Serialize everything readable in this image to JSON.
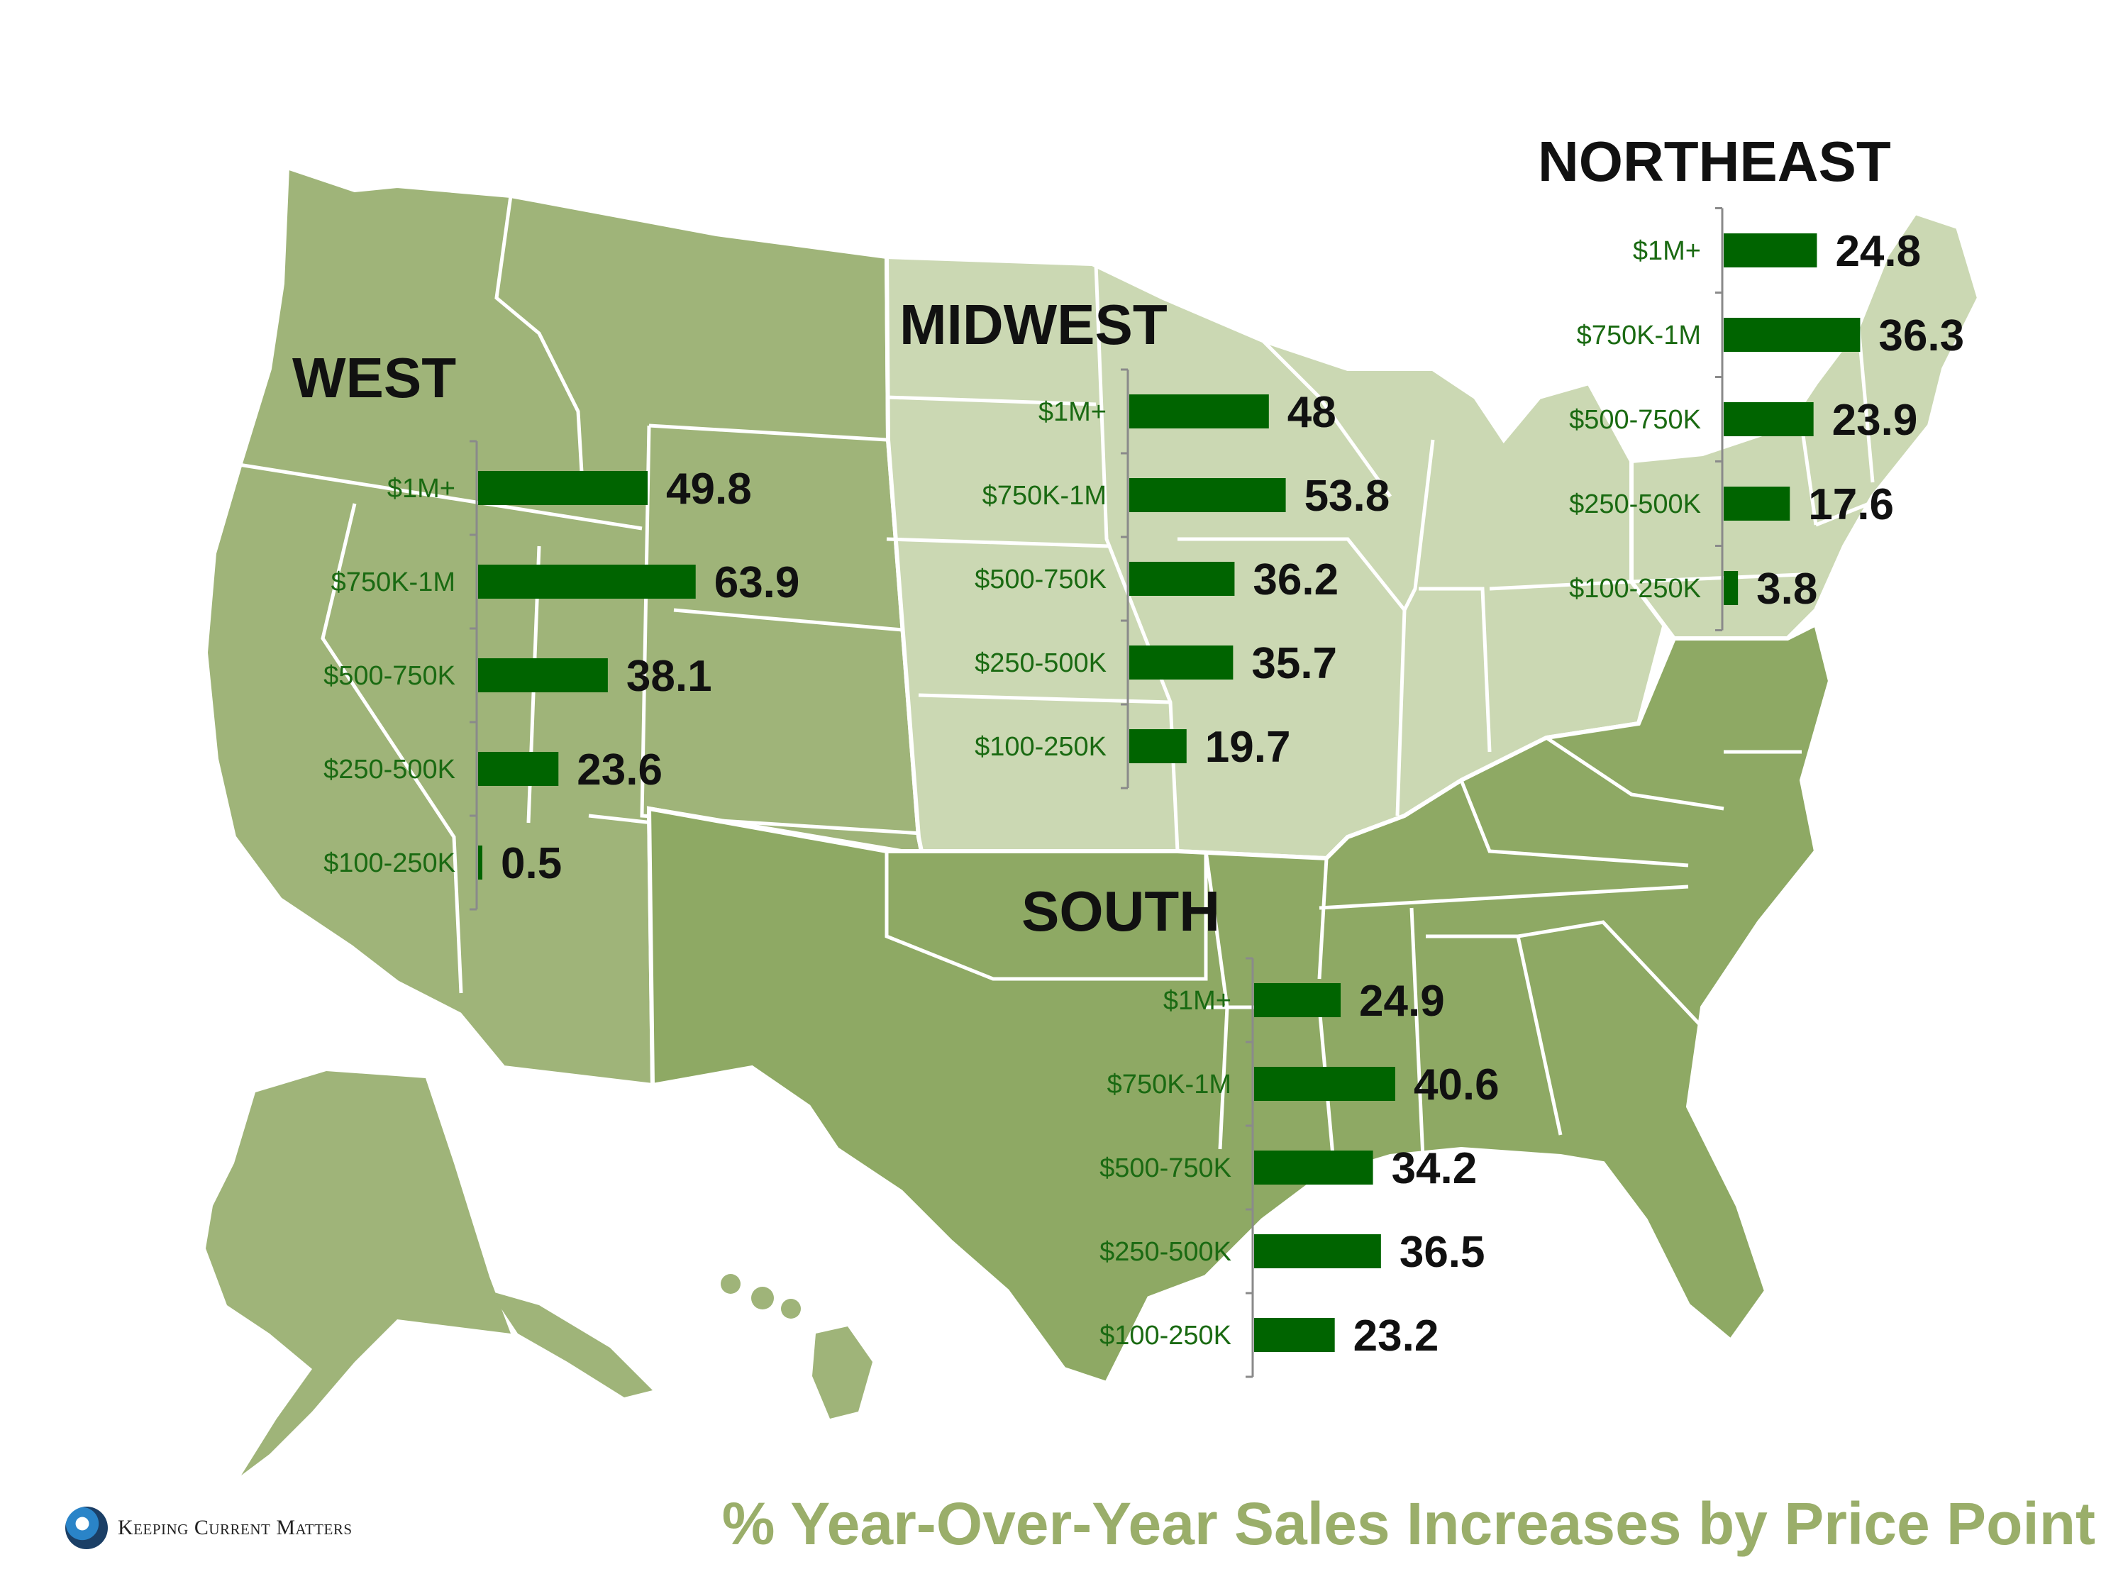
{
  "title": "% Year-Over-Year Sales Increases by Price Point",
  "brand": {
    "name": "Keeping Current Matters",
    "logo_icon": "kcm-swirl-icon"
  },
  "colors": {
    "bar": "#006400",
    "category_text": "#1a6a12",
    "map_dark": "#8ea964",
    "map_mid": "#9fb479",
    "map_light": "#cbd8b3",
    "footer_title": "#9aae6a"
  },
  "chart_data": [
    {
      "type": "bar",
      "region": "WEST",
      "title": "WEST",
      "categories": [
        "$1M+",
        "$750K-1M",
        "$500-750K",
        "$250-500K",
        "$100-250K"
      ],
      "values": [
        49.8,
        63.9,
        38.1,
        23.6,
        0.5
      ],
      "value_labels": [
        "49.8",
        "63.9",
        "38.1",
        "23.6",
        "0.5"
      ],
      "orientation": "horizontal"
    },
    {
      "type": "bar",
      "region": "MIDWEST",
      "title": "MIDWEST",
      "categories": [
        "$1M+",
        "$750K-1M",
        "$500-750K",
        "$250-500K",
        "$100-250K"
      ],
      "values": [
        48,
        53.8,
        36.2,
        35.7,
        19.7
      ],
      "value_labels": [
        "48",
        "53.8",
        "36.2",
        "35.7",
        "19.7"
      ],
      "orientation": "horizontal"
    },
    {
      "type": "bar",
      "region": "NORTHEAST",
      "title": "NORTHEAST",
      "categories": [
        "$1M+",
        "$750K-1M",
        "$500-750K",
        "$250-500K",
        "$100-250K"
      ],
      "values": [
        24.8,
        36.3,
        23.9,
        17.6,
        3.8
      ],
      "value_labels": [
        "24.8",
        "36.3",
        "23.9",
        "17.6",
        "3.8"
      ],
      "orientation": "horizontal"
    },
    {
      "type": "bar",
      "region": "SOUTH",
      "title": "SOUTH",
      "categories": [
        "$1M+",
        "$750K-1M",
        "$500-750K",
        "$250-500K",
        "$100-250K"
      ],
      "values": [
        24.9,
        40.6,
        34.2,
        36.5,
        23.2
      ],
      "value_labels": [
        "24.9",
        "40.6",
        "34.2",
        "36.5",
        "23.2"
      ],
      "orientation": "horizontal"
    }
  ]
}
